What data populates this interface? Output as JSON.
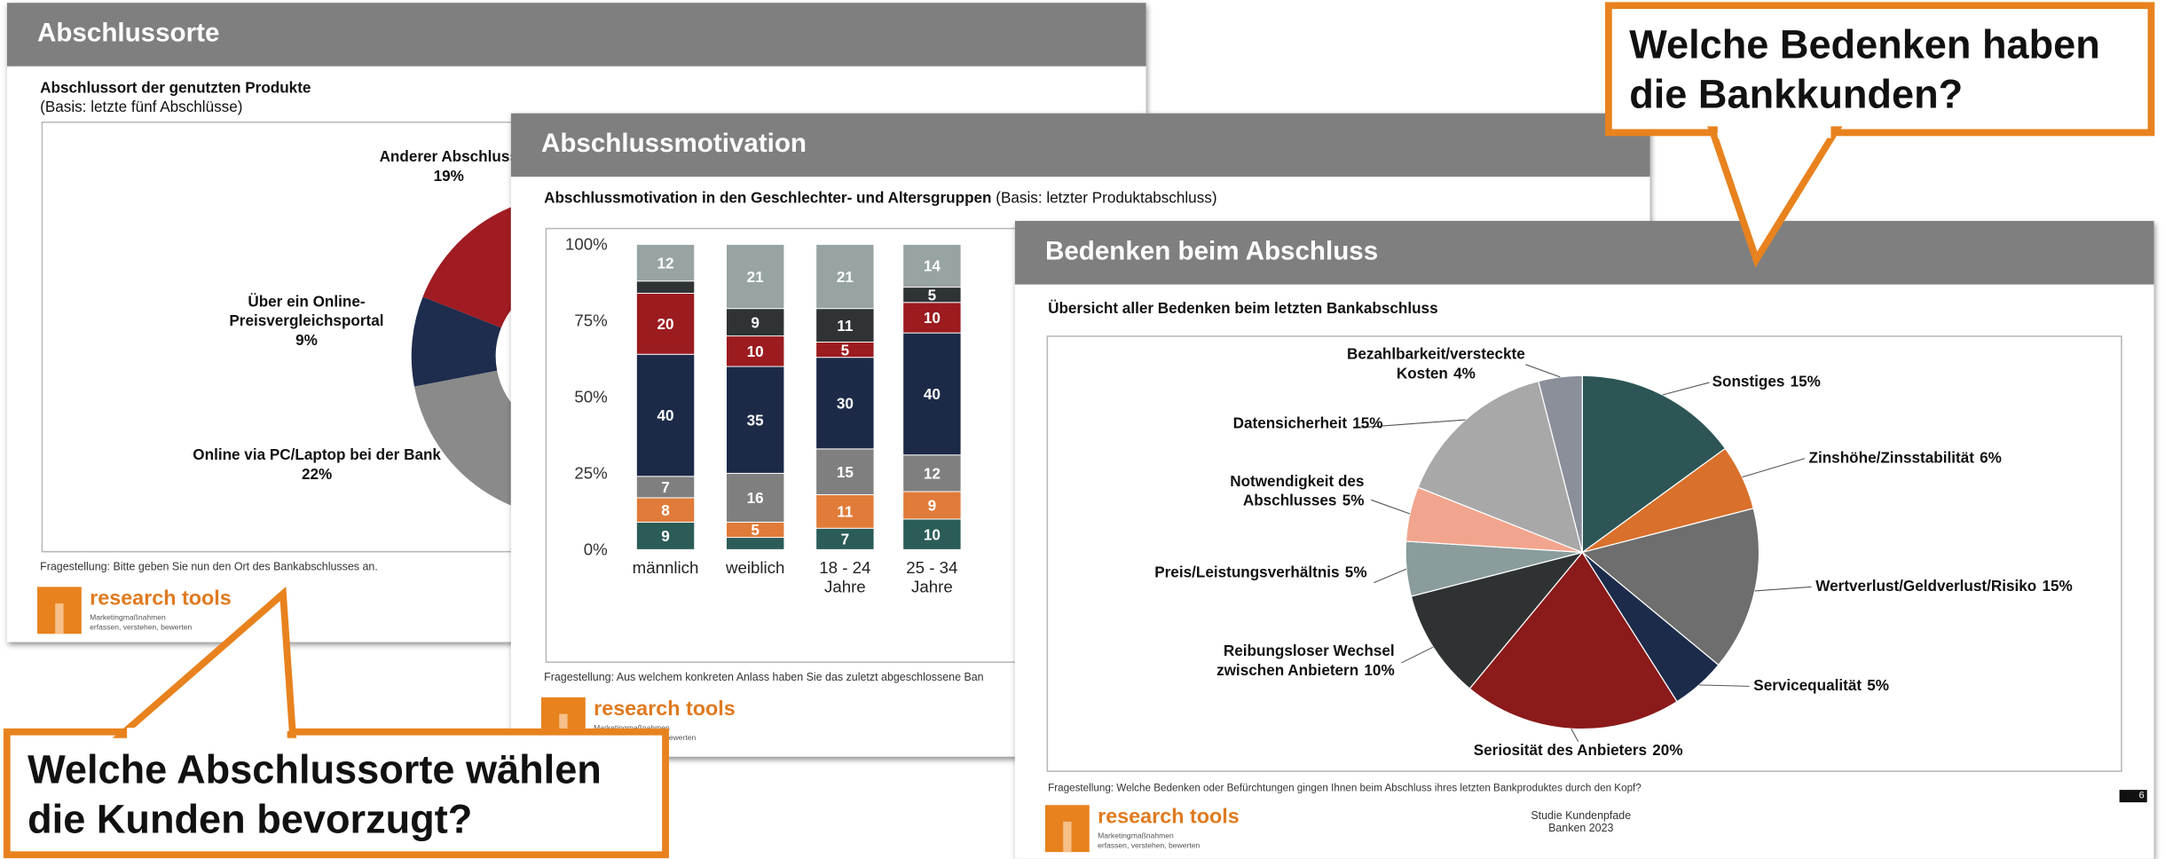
{
  "slides": [
    {
      "title": "Abschlussorte",
      "subtitle": "Abschlussort der genutzten Produkte",
      "basis": "(Basis: letzte fünf Abschlüsse)",
      "question": "Fragestellung: Bitte geben Sie nun den Ort des Bankabschlusses an.",
      "logo": "research tools",
      "tagline": [
        "Marketingmaßnahmen",
        "erfassen, verstehen, bewerten"
      ]
    },
    {
      "title": "Abschlussmotivation",
      "subtitle": "Abschlussmotivation in den Geschlechter- und Altersgruppen",
      "basis": "(Basis: letzter Produktabschluss)",
      "question": "Fragestellung: Aus welchem konkreten Anlass haben Sie das zuletzt abgeschlossene Ban",
      "logo": "research tools",
      "tagline": [
        "Marketingmaßnahmen",
        "erfassen, verstehen, bewerten"
      ]
    },
    {
      "title": "Bedenken beim Abschluss",
      "subtitle": "Übersicht aller Bedenken beim letzten Bankabschluss",
      "question": "Fragestellung: Welche Bedenken oder Befürchtungen gingen Ihnen beim Abschluss ihres letzten Bankproduktes durch den Kopf?",
      "logo": "research tools",
      "tagline": [
        "Marketingmaßnahmen",
        "erfassen, verstehen, bewerten"
      ],
      "study": "Studie Kundenpfade",
      "edition": "Banken 2023",
      "page": "6"
    }
  ],
  "chart_data": [
    {
      "type": "donut",
      "categories": [
        "Anderer Abschluss",
        "Über ein Online-Preisvergleichsportal",
        "Online via PC/Laptop bei der Bank"
      ],
      "values": [
        19,
        9,
        22
      ],
      "value_labels": [
        "19%",
        "9%",
        "22%"
      ],
      "colors": [
        "#a01c22",
        "#1e2d4d",
        "#8a8a8a"
      ]
    },
    {
      "type": "stacked_bar",
      "categories": [
        "männlich",
        "weiblich",
        "18 - 24 Jahre",
        "25 - 34 Jahre"
      ],
      "series": [
        {
          "color": "#2b5c57",
          "values": [
            9,
            4,
            7,
            10
          ]
        },
        {
          "color": "#e07b39",
          "values": [
            8,
            5,
            11,
            9
          ]
        },
        {
          "color": "#7f7f7f",
          "values": [
            7,
            16,
            15,
            12
          ]
        },
        {
          "color": "#1c2a48",
          "values": [
            40,
            35,
            30,
            40
          ]
        },
        {
          "color": "#9b1b1f",
          "values": [
            20,
            10,
            5,
            10
          ]
        },
        {
          "color": "#2f3335",
          "values": [
            4,
            9,
            11,
            5
          ]
        },
        {
          "color": "#98a3a3",
          "values": [
            12,
            21,
            21,
            14
          ]
        }
      ],
      "ylim": [
        0,
        100
      ],
      "yticks": [
        {
          "value": 0,
          "label": "0%"
        },
        {
          "value": 25,
          "label": "25%"
        },
        {
          "value": 50,
          "label": "50%"
        },
        {
          "value": 75,
          "label": "75%"
        },
        {
          "value": 100,
          "label": "100%"
        }
      ],
      "grid": false
    },
    {
      "type": "pie",
      "categories": [
        "Sonstiges",
        "Zinshöhe/Zinsstabilität",
        "Wertverlust/Geldverlust/Risiko",
        "Servicequalität",
        "Seriosität des Anbieters",
        "Reibungsloser Wechsel zwischen Anbietern",
        "Preis/Leistungsverhältnis",
        "Notwendigkeit des Abschlusses",
        "Datensicherheit",
        "Bezahlbarkeit/versteckte Kosten"
      ],
      "values": [
        15,
        6,
        15,
        5,
        20,
        10,
        5,
        5,
        15,
        4
      ],
      "value_labels": [
        "15%",
        "6%",
        "15%",
        "5%",
        "20%",
        "10%",
        "5%",
        "5%",
        "15%",
        "4%"
      ],
      "colors": [
        "#2d5555",
        "#d9702b",
        "#6e6e6e",
        "#1c2b4a",
        "#8b1a1a",
        "#2f3233",
        "#8a9c9c",
        "#f2a58e",
        "#a8a8a8",
        "#8a8f9a"
      ]
    }
  ],
  "callouts": [
    {
      "lines": [
        "Welche Bedenken haben",
        "die Bankkunden?"
      ]
    },
    {
      "lines": [
        "Welche Abschlussorte wählen",
        "die Kunden bevorzugt?"
      ]
    }
  ]
}
